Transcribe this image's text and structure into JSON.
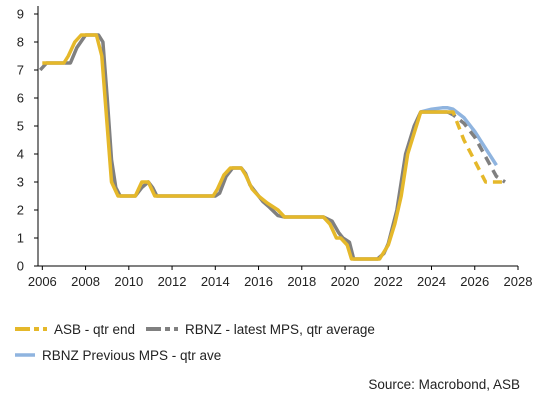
{
  "chart_data": {
    "type": "line",
    "xlim": [
      2005.8,
      2028
    ],
    "ylim": [
      0,
      9
    ],
    "x_ticks": [
      2006,
      2008,
      2010,
      2012,
      2014,
      2016,
      2018,
      2020,
      2022,
      2024,
      2026,
      2028
    ],
    "y_ticks": [
      0,
      1,
      2,
      3,
      4,
      5,
      6,
      7,
      8,
      9
    ],
    "grid": false,
    "legend_position": "bottom",
    "series": [
      {
        "name": "RBNZ Previous MPS - qtr ave",
        "color": "#8fb4df",
        "style": "solid",
        "x": [
          2023.5,
          2024.0,
          2024.5,
          2024.75,
          2025.0,
          2025.5,
          2026.0,
          2026.5,
          2027.0
        ],
        "y": [
          5.5,
          5.6,
          5.65,
          5.65,
          5.6,
          5.3,
          4.8,
          4.2,
          3.6
        ]
      },
      {
        "name": "RBNZ - latest MPS, qtr average",
        "color": "#808080",
        "style": "solid",
        "x": [
          2005.9,
          2006.2,
          2006.6,
          2007.0,
          2007.3,
          2007.6,
          2008.0,
          2008.3,
          2008.6,
          2008.8,
          2009.0,
          2009.2,
          2009.4,
          2009.6,
          2010.0,
          2010.3,
          2010.6,
          2010.9,
          2011.1,
          2011.3,
          2011.5,
          2012.0,
          2013.0,
          2014.0,
          2014.2,
          2014.5,
          2014.8,
          2015.2,
          2015.4,
          2015.6,
          2015.9,
          2016.2,
          2016.5,
          2016.9,
          2017.2,
          2018.0,
          2019.0,
          2019.4,
          2019.7,
          2019.9,
          2020.2,
          2020.4,
          2020.6,
          2021.0,
          2021.5,
          2021.8,
          2022.0,
          2022.4,
          2022.8,
          2023.2,
          2023.5,
          2024.0,
          2024.5,
          2024.75
        ],
        "y": [
          7.0,
          7.25,
          7.25,
          7.25,
          7.25,
          7.8,
          8.25,
          8.25,
          8.25,
          8.0,
          6.0,
          3.8,
          2.8,
          2.5,
          2.5,
          2.5,
          2.8,
          3.0,
          2.8,
          2.5,
          2.5,
          2.5,
          2.5,
          2.5,
          2.6,
          3.2,
          3.5,
          3.5,
          3.3,
          2.9,
          2.6,
          2.3,
          2.1,
          1.8,
          1.75,
          1.75,
          1.75,
          1.6,
          1.2,
          1.0,
          0.85,
          0.25,
          0.25,
          0.25,
          0.25,
          0.45,
          0.8,
          2.0,
          4.0,
          5.0,
          5.5,
          5.5,
          5.5,
          5.5
        ]
      },
      {
        "name": "RBNZ - latest MPS, qtr average (projection)",
        "color": "#808080",
        "style": "dashed",
        "x": [
          2024.75,
          2025.0,
          2025.5,
          2026.0,
          2026.5,
          2027.0,
          2027.4
        ],
        "y": [
          5.5,
          5.4,
          5.1,
          4.6,
          3.9,
          3.2,
          3.0
        ]
      },
      {
        "name": "ASB - qtr end",
        "color": "#e5b82a",
        "style": "solid",
        "x": [
          2006.0,
          2006.5,
          2007.0,
          2007.2,
          2007.5,
          2007.8,
          2008.3,
          2008.5,
          2008.75,
          2009.0,
          2009.2,
          2009.5,
          2010.0,
          2010.3,
          2010.6,
          2010.9,
          2011.2,
          2011.4,
          2012.0,
          2013.0,
          2013.9,
          2014.1,
          2014.4,
          2014.7,
          2015.2,
          2015.4,
          2015.7,
          2016.0,
          2016.4,
          2016.9,
          2017.2,
          2018.0,
          2019.0,
          2019.3,
          2019.6,
          2019.8,
          2020.1,
          2020.3,
          2020.5,
          2021.0,
          2021.6,
          2021.8,
          2022.0,
          2022.3,
          2022.6,
          2022.9,
          2023.2,
          2023.5,
          2024.0,
          2024.5,
          2024.75
        ],
        "y": [
          7.25,
          7.25,
          7.25,
          7.5,
          8.0,
          8.25,
          8.25,
          8.25,
          7.5,
          5.0,
          3.0,
          2.5,
          2.5,
          2.5,
          3.0,
          3.0,
          2.5,
          2.5,
          2.5,
          2.5,
          2.5,
          2.75,
          3.25,
          3.5,
          3.5,
          3.25,
          2.75,
          2.5,
          2.25,
          2.0,
          1.75,
          1.75,
          1.75,
          1.5,
          1.0,
          1.0,
          0.75,
          0.25,
          0.25,
          0.25,
          0.25,
          0.5,
          0.75,
          1.5,
          2.5,
          4.0,
          4.75,
          5.5,
          5.5,
          5.5,
          5.5
        ]
      },
      {
        "name": "ASB - qtr end (projection)",
        "color": "#e5b82a",
        "style": "dashed",
        "x": [
          2024.75,
          2025.0,
          2025.5,
          2026.0,
          2026.5,
          2027.0,
          2027.4
        ],
        "y": [
          5.5,
          5.5,
          4.5,
          3.75,
          3.0,
          3.0,
          3.0
        ]
      }
    ]
  },
  "legend": {
    "items": [
      {
        "label": "ASB - qtr end",
        "color": "#e5b82a"
      },
      {
        "label": "RBNZ - latest MPS, qtr average",
        "color": "#808080"
      },
      {
        "label": "RBNZ Previous MPS - qtr ave",
        "color": "#8fb4df"
      }
    ]
  },
  "source": "Source: Macrobond, ASB"
}
